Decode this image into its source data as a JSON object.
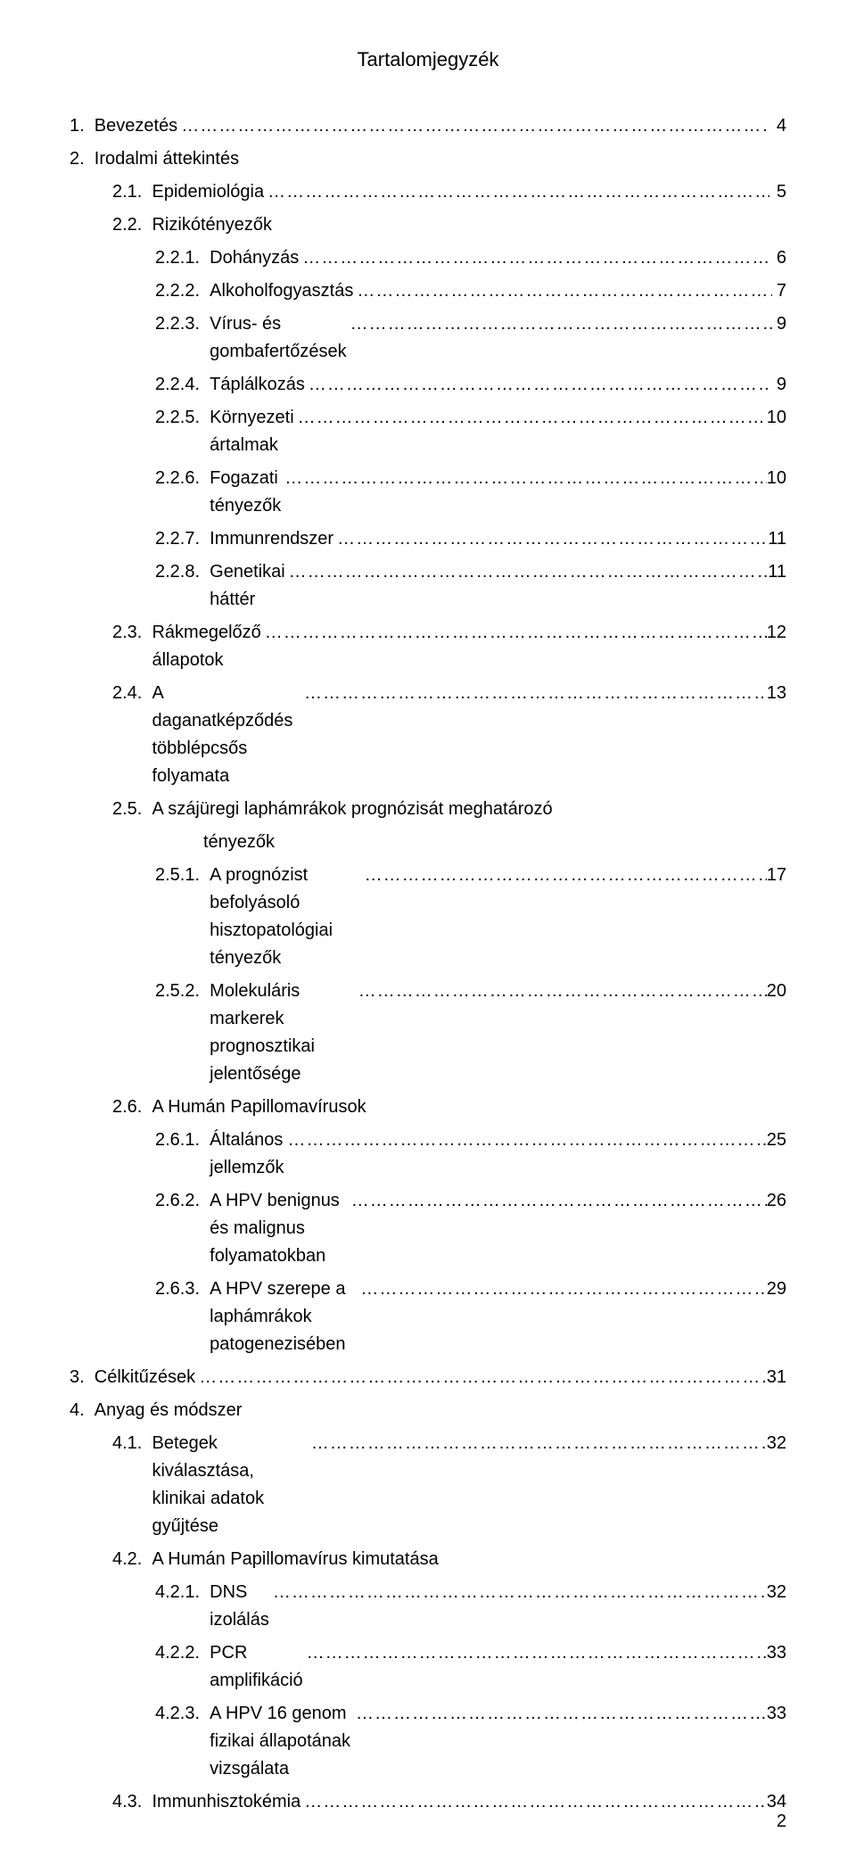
{
  "title": "Tartalomjegyzék",
  "leader_fill": "……………………………………………………………………………………………………………………………………………………",
  "page_number": "2",
  "entries": [
    {
      "indent": 0,
      "num": "1.",
      "label": "Bevezetés",
      "leader": true,
      "page": "4"
    },
    {
      "indent": 0,
      "num": "2.",
      "label": "Irodalmi áttekintés",
      "leader": false,
      "page": ""
    },
    {
      "indent": 1,
      "num": "2.1.",
      "label": "Epidemiológia",
      "leader": true,
      "page": "5"
    },
    {
      "indent": 1,
      "num": "2.2.",
      "label": "Rizikótényezők",
      "leader": false,
      "page": ""
    },
    {
      "indent": 2,
      "num": "2.2.1.",
      "label": "Dohányzás",
      "leader": true,
      "page": "6"
    },
    {
      "indent": 2,
      "num": "2.2.2.",
      "label": "Alkoholfogyasztás",
      "leader": true,
      "page": "7"
    },
    {
      "indent": 2,
      "num": "2.2.3.",
      "label": "Vírus- és gombafertőzések",
      "leader": true,
      "page": "9"
    },
    {
      "indent": 2,
      "num": "2.2.4.",
      "label": "Táplálkozás",
      "leader": true,
      "page": "9"
    },
    {
      "indent": 2,
      "num": "2.2.5.",
      "label": "Környezeti ártalmak",
      "leader": true,
      "page": "10"
    },
    {
      "indent": 2,
      "num": "2.2.6.",
      "label": "Fogazati tényezők",
      "leader": true,
      "page": "10"
    },
    {
      "indent": 2,
      "num": "2.2.7.",
      "label": "Immunrendszer",
      "leader": true,
      "page": "11"
    },
    {
      "indent": 2,
      "num": "2.2.8.",
      "label": "Genetikai háttér",
      "leader": true,
      "page": "11"
    },
    {
      "indent": 1,
      "num": "2.3.",
      "label": "Rákmegelőző állapotok",
      "leader": true,
      "page": "12"
    },
    {
      "indent": 1,
      "num": "2.4.",
      "label": "A daganatképződés többlépcsős folyamata",
      "leader": true,
      "page": "13"
    },
    {
      "indent": 1,
      "num": "2.5.",
      "label": "A szájüregi laphámrákok prognózisát meghatározó",
      "leader": false,
      "page": ""
    },
    {
      "indent": "cont",
      "num": "",
      "label": "tényezők",
      "leader": false,
      "page": ""
    },
    {
      "indent": 2,
      "num": "2.5.1.",
      "label": "A prognózist befolyásoló hisztopatológiai tényezők",
      "leader": true,
      "page": "17"
    },
    {
      "indent": 2,
      "num": "2.5.2.",
      "label": "Molekuláris markerek prognosztikai jelentősége",
      "leader": true,
      "page": "20"
    },
    {
      "indent": 1,
      "num": "2.6.",
      "label": "A Humán Papillomavírusok",
      "leader": false,
      "page": ""
    },
    {
      "indent": 2,
      "num": "2.6.1.",
      "label": "Általános jellemzők",
      "leader": true,
      "page": "25"
    },
    {
      "indent": 2,
      "num": "2.6.2.",
      "label": "A HPV benignus és malignus folyamatokban",
      "leader": true,
      "page": "26"
    },
    {
      "indent": 2,
      "num": "2.6.3.",
      "label": "A HPV szerepe a laphámrákok patogenezisében",
      "leader": true,
      "page": "29"
    },
    {
      "indent": 0,
      "num": "3.",
      "label": "Célkitűzések",
      "leader": true,
      "page": "31"
    },
    {
      "indent": 0,
      "num": "4.",
      "label": "Anyag és módszer",
      "leader": false,
      "page": ""
    },
    {
      "indent": 1,
      "num": "4.1.",
      "label": "Betegek kiválasztása, klinikai adatok gyűjtése",
      "leader": true,
      "page": "32"
    },
    {
      "indent": 1,
      "num": "4.2.",
      "label": "A Humán Papillomavírus kimutatása",
      "leader": false,
      "page": ""
    },
    {
      "indent": 2,
      "num": "4.2.1.",
      "label": "DNS izolálás",
      "leader": true,
      "page": "32"
    },
    {
      "indent": 2,
      "num": "4.2.2.",
      "label": "PCR amplifikáció",
      "leader": true,
      "page": "33"
    },
    {
      "indent": 2,
      "num": "4.2.3.",
      "label": "A HPV 16 genom fizikai állapotának vizsgálata",
      "leader": true,
      "page": "33"
    },
    {
      "indent": 1,
      "num": "4.3.",
      "label": "Immunhisztokémia",
      "leader": true,
      "page": "34"
    }
  ]
}
